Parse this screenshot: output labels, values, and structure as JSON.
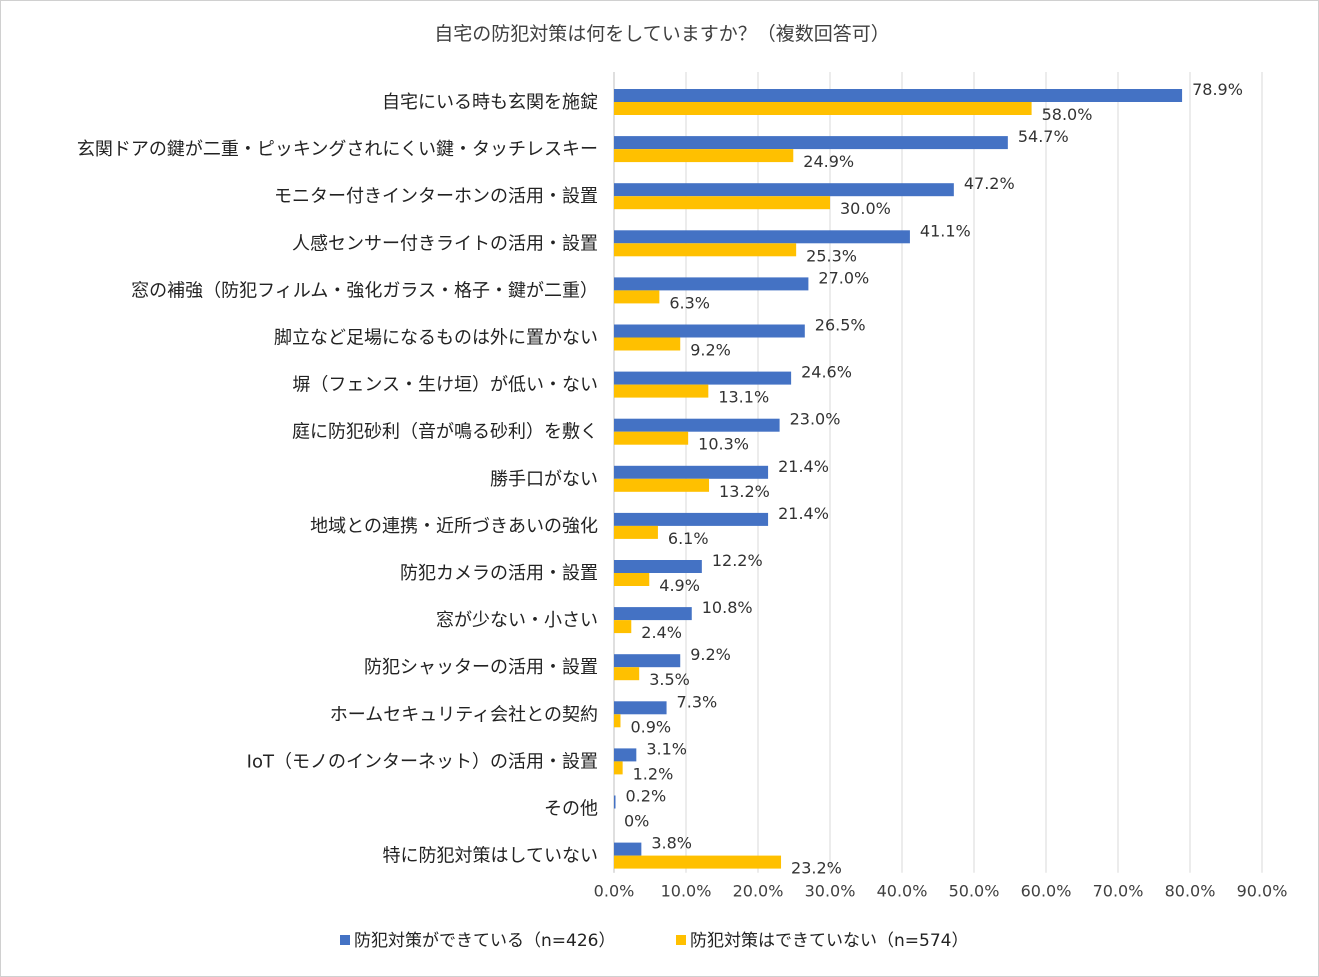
{
  "chart_data": {
    "type": "bar",
    "orientation": "horizontal",
    "title": "自宅の防犯対策は何をしていますか？（複数回答可）",
    "categories": [
      "自宅にいる時も玄関を施錠",
      "玄関ドアの鍵が二重・ピッキングされにくい鍵・タッチレスキー",
      "モニター付きインターホンの活用・設置",
      "人感センサー付きライトの活用・設置",
      "窓の補強（防犯フィルム・強化ガラス・格子・鍵が二重）",
      "脚立など足場になるものは外に置かない",
      "塀（フェンス・生け垣）が低い・ない",
      "庭に防犯砂利（音が鳴る砂利）を敷く",
      "勝手口がない",
      "地域との連携・近所づきあいの強化",
      "防犯カメラの活用・設置",
      "窓が少ない・小さい",
      "防犯シャッターの活用・設置",
      "ホームセキュリティ会社との契約",
      "IoT（モノのインターネット）の活用・設置",
      "その他",
      "特に防犯対策はしていない"
    ],
    "series": [
      {
        "name": "防犯対策ができている（n=426）",
        "color": "#4472C4",
        "values": [
          78.9,
          54.7,
          47.2,
          41.1,
          27.0,
          26.5,
          24.6,
          23.0,
          21.4,
          21.4,
          12.2,
          10.8,
          9.2,
          7.3,
          3.1,
          0.2,
          3.8
        ],
        "labels": [
          "78.9%",
          "54.7%",
          "47.2%",
          "41.1%",
          "27.0%",
          "26.5%",
          "24.6%",
          "23.0%",
          "21.4%",
          "21.4%",
          "12.2%",
          "10.8%",
          "9.2%",
          "7.3%",
          "3.1%",
          "0.2%",
          "3.8%"
        ]
      },
      {
        "name": "防犯対策はできていない（n=574）",
        "color": "#FFC000",
        "values": [
          58.0,
          24.9,
          30.0,
          25.3,
          6.3,
          9.2,
          13.1,
          10.3,
          13.2,
          6.1,
          4.9,
          2.4,
          3.5,
          0.9,
          1.2,
          0,
          23.2
        ],
        "labels": [
          "58.0%",
          "24.9%",
          "30.0%",
          "25.3%",
          "6.3%",
          "9.2%",
          "13.1%",
          "10.3%",
          "13.2%",
          "6.1%",
          "4.9%",
          "2.4%",
          "3.5%",
          "0.9%",
          "1.2%",
          "0%",
          "23.2%"
        ]
      }
    ],
    "xlim": [
      0,
      90
    ],
    "xticks": [
      0,
      10,
      20,
      30,
      40,
      50,
      60,
      70,
      80,
      90
    ],
    "xtick_labels": [
      "0.0%",
      "10.0%",
      "20.0%",
      "30.0%",
      "40.0%",
      "50.0%",
      "60.0%",
      "70.0%",
      "80.0%",
      "90.0%"
    ],
    "grid": true,
    "legend_position": "bottom",
    "xlabel": "",
    "ylabel": ""
  }
}
